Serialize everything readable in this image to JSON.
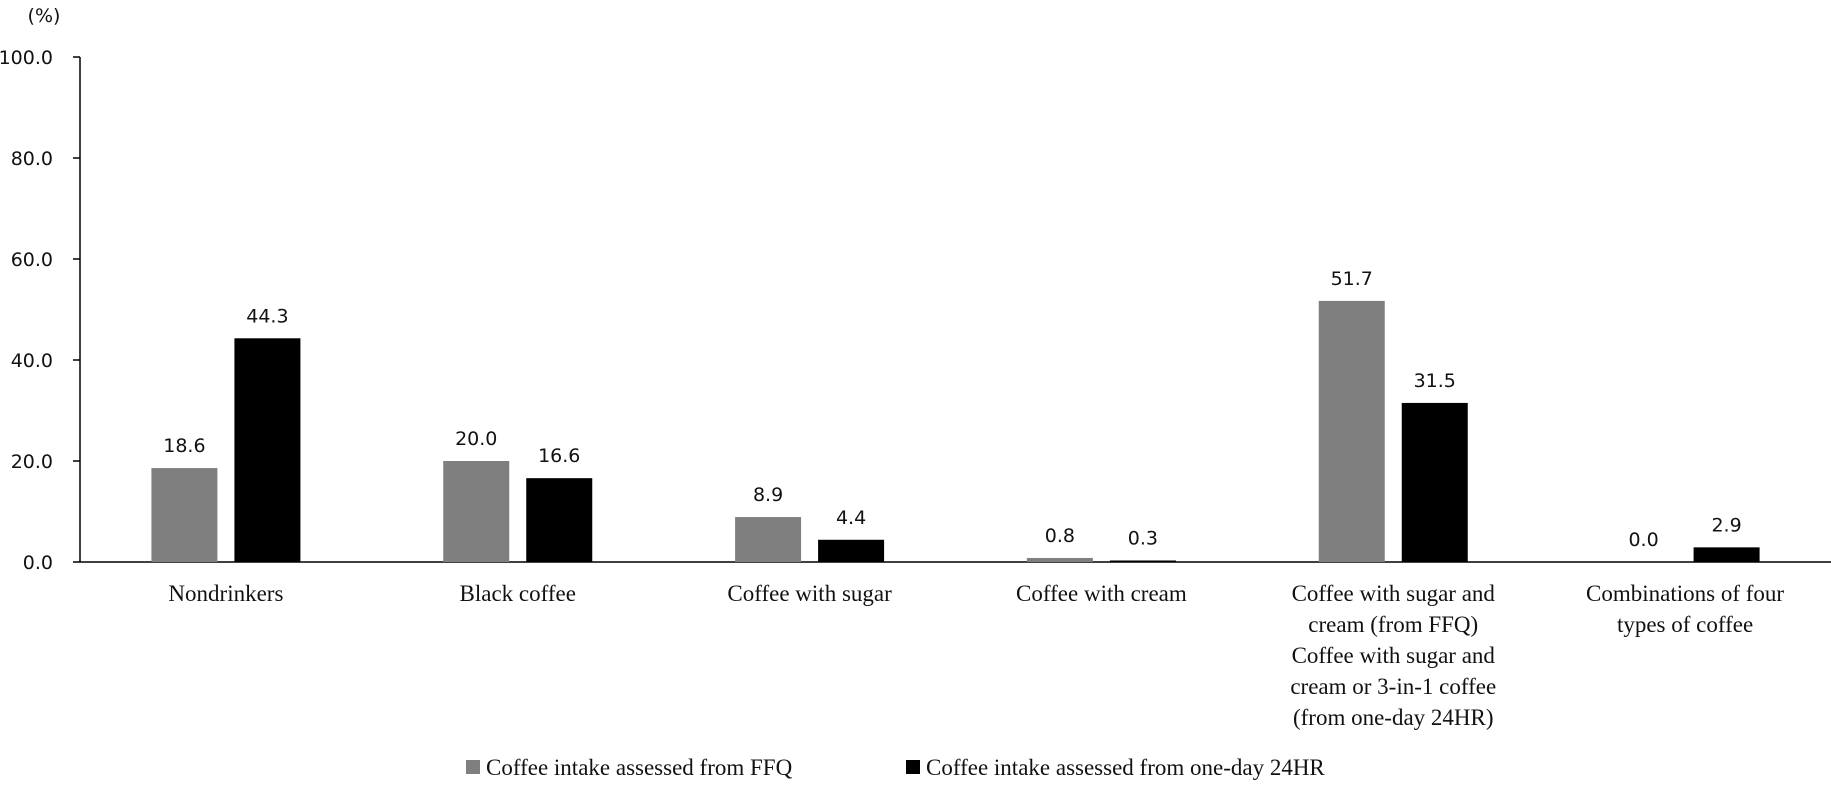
{
  "chart_data": {
    "type": "bar",
    "ylabel": "(%)",
    "ylim": [
      0,
      100
    ],
    "yticks": [
      "0.0",
      "20.0",
      "40.0",
      "60.0",
      "80.0",
      "100.0"
    ],
    "categories": [
      [
        "Nondrinkers"
      ],
      [
        "Black coffee"
      ],
      [
        "Coffee with sugar"
      ],
      [
        "Coffee with cream"
      ],
      [
        "Coffee with sugar and",
        "cream (from FFQ)",
        "Coffee with sugar and",
        "cream or 3-in-1 coffee",
        "(from one-day 24HR)"
      ],
      [
        "Combinations of four",
        "types of coffee"
      ]
    ],
    "series": [
      {
        "name": "Coffee intake assessed from FFQ",
        "color": "#7f7f7f",
        "values": [
          18.6,
          20.0,
          8.9,
          0.8,
          51.7,
          0.0
        ],
        "labels": [
          "18.6",
          "20.0",
          "8.9",
          "0.8",
          "51.7",
          "0.0"
        ]
      },
      {
        "name": "Coffee intake assessed from one-day 24HR",
        "color": "#000000",
        "values": [
          44.3,
          16.6,
          4.4,
          0.3,
          31.5,
          2.9
        ],
        "labels": [
          "44.3",
          "16.6",
          "4.4",
          "0.3",
          "31.5",
          "2.9"
        ]
      }
    ],
    "grid": false,
    "legend_position": "bottom"
  }
}
